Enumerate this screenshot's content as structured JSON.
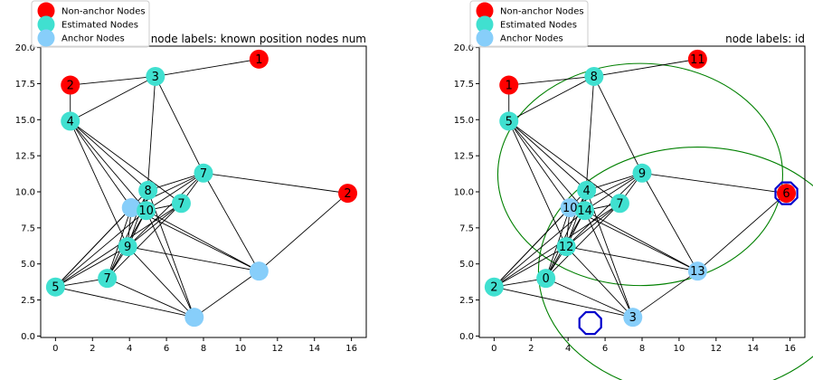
{
  "chart_data": [
    {
      "type": "scatter",
      "title": "node labels: known position nodes num",
      "xlim": [
        -0.8,
        16.8
      ],
      "ylim": [
        -0.1,
        20.1
      ],
      "xticks": [
        0,
        2,
        4,
        6,
        8,
        10,
        12,
        14,
        16
      ],
      "yticks": [
        0.0,
        2.5,
        5.0,
        7.5,
        10.0,
        12.5,
        15.0,
        17.5,
        20.0
      ],
      "grid": false,
      "legend": {
        "placement": "top-left",
        "entries": [
          {
            "label": "Non-anchor Nodes",
            "color": "#ff0000"
          },
          {
            "label": "Estimated Nodes",
            "color": "#40e0d0"
          },
          {
            "label": "Anchor Nodes",
            "color": "#87cefa"
          }
        ]
      },
      "nodes": [
        {
          "id": 0,
          "x": 2.8,
          "y": 4.0,
          "kind": "estimated",
          "label": "7"
        },
        {
          "id": 1,
          "x": 0.8,
          "y": 17.4,
          "kind": "non-anchor",
          "label": "2"
        },
        {
          "id": 2,
          "x": 0.0,
          "y": 3.4,
          "kind": "estimated",
          "label": "5"
        },
        {
          "id": 3,
          "x": 7.5,
          "y": 1.3,
          "kind": "anchor",
          "label": ""
        },
        {
          "id": 4,
          "x": 5.0,
          "y": 10.1,
          "kind": "estimated",
          "label": "8"
        },
        {
          "id": 5,
          "x": 0.8,
          "y": 14.9,
          "kind": "estimated",
          "label": "4"
        },
        {
          "id": 6,
          "x": 15.8,
          "y": 9.9,
          "kind": "non-anchor",
          "label": "2"
        },
        {
          "id": 7,
          "x": 6.8,
          "y": 9.2,
          "kind": "estimated",
          "label": "7"
        },
        {
          "id": 8,
          "x": 5.4,
          "y": 18.0,
          "kind": "estimated",
          "label": "3"
        },
        {
          "id": 9,
          "x": 8.0,
          "y": 11.3,
          "kind": "estimated",
          "label": "7"
        },
        {
          "id": 10,
          "x": 4.1,
          "y": 8.9,
          "kind": "anchor",
          "label": ""
        },
        {
          "id": 11,
          "x": 11.0,
          "y": 19.2,
          "kind": "non-anchor",
          "label": "1"
        },
        {
          "id": 12,
          "x": 3.9,
          "y": 6.2,
          "kind": "estimated",
          "label": "9"
        },
        {
          "id": 13,
          "x": 11.0,
          "y": 4.5,
          "kind": "anchor",
          "label": ""
        },
        {
          "id": 14,
          "x": 4.9,
          "y": 8.7,
          "kind": "estimated",
          "label": "10"
        }
      ],
      "edges": [
        [
          1,
          8
        ],
        [
          8,
          11
        ],
        [
          8,
          5
        ],
        [
          8,
          14
        ],
        [
          8,
          9
        ],
        [
          1,
          5
        ],
        [
          5,
          4
        ],
        [
          5,
          14
        ],
        [
          5,
          10
        ],
        [
          5,
          12
        ],
        [
          5,
          7
        ],
        [
          4,
          9
        ],
        [
          4,
          3
        ],
        [
          4,
          12
        ],
        [
          4,
          0
        ],
        [
          4,
          2
        ],
        [
          9,
          7
        ],
        [
          9,
          14
        ],
        [
          9,
          10
        ],
        [
          9,
          12
        ],
        [
          9,
          13
        ],
        [
          9,
          6
        ],
        [
          6,
          13
        ],
        [
          10,
          12
        ],
        [
          10,
          0
        ],
        [
          10,
          2
        ],
        [
          10,
          13
        ],
        [
          14,
          7
        ],
        [
          14,
          12
        ],
        [
          14,
          0
        ],
        [
          14,
          2
        ],
        [
          14,
          13
        ],
        [
          14,
          3
        ],
        [
          7,
          12
        ],
        [
          7,
          0
        ],
        [
          7,
          2
        ],
        [
          12,
          0
        ],
        [
          12,
          2
        ],
        [
          12,
          13
        ],
        [
          12,
          3
        ],
        [
          0,
          2
        ],
        [
          0,
          3
        ],
        [
          2,
          3
        ],
        [
          3,
          13
        ]
      ]
    },
    {
      "type": "scatter",
      "title": "node labels: id",
      "xlim": [
        -0.8,
        16.8
      ],
      "ylim": [
        -0.1,
        20.1
      ],
      "xticks": [
        0,
        2,
        4,
        6,
        8,
        10,
        12,
        14,
        16
      ],
      "yticks": [
        0.0,
        2.5,
        5.0,
        7.5,
        10.0,
        12.5,
        15.0,
        17.5,
        20.0
      ],
      "grid": false,
      "legend": {
        "placement": "top-left",
        "entries": [
          {
            "label": "Non-anchor Nodes",
            "color": "#ff0000"
          },
          {
            "label": "Estimated Nodes",
            "color": "#40e0d0"
          },
          {
            "label": "Anchor Nodes",
            "color": "#87cefa"
          }
        ]
      },
      "nodes": [
        {
          "id": 0,
          "x": 2.8,
          "y": 4.0,
          "kind": "estimated",
          "label": "0"
        },
        {
          "id": 1,
          "x": 0.8,
          "y": 17.4,
          "kind": "non-anchor",
          "label": "1"
        },
        {
          "id": 2,
          "x": 0.0,
          "y": 3.4,
          "kind": "estimated",
          "label": "2"
        },
        {
          "id": 3,
          "x": 7.5,
          "y": 1.3,
          "kind": "anchor",
          "label": "3"
        },
        {
          "id": 4,
          "x": 5.0,
          "y": 10.1,
          "kind": "estimated",
          "label": "4"
        },
        {
          "id": 5,
          "x": 0.8,
          "y": 14.9,
          "kind": "estimated",
          "label": "5"
        },
        {
          "id": 6,
          "x": 15.8,
          "y": 9.9,
          "kind": "non-anchor",
          "label": "6"
        },
        {
          "id": 7,
          "x": 6.8,
          "y": 9.2,
          "kind": "estimated",
          "label": "7"
        },
        {
          "id": 8,
          "x": 5.4,
          "y": 18.0,
          "kind": "estimated",
          "label": "8"
        },
        {
          "id": 9,
          "x": 8.0,
          "y": 11.3,
          "kind": "estimated",
          "label": "9"
        },
        {
          "id": 10,
          "x": 4.1,
          "y": 8.9,
          "kind": "anchor",
          "label": "10"
        },
        {
          "id": 11,
          "x": 11.0,
          "y": 19.2,
          "kind": "non-anchor",
          "label": "11"
        },
        {
          "id": 12,
          "x": 3.9,
          "y": 6.2,
          "kind": "estimated",
          "label": "12"
        },
        {
          "id": 13,
          "x": 11.0,
          "y": 4.5,
          "kind": "anchor",
          "label": "13"
        },
        {
          "id": 14,
          "x": 4.9,
          "y": 8.7,
          "kind": "estimated",
          "label": "14"
        }
      ],
      "edges": [
        [
          1,
          8
        ],
        [
          8,
          11
        ],
        [
          8,
          5
        ],
        [
          8,
          14
        ],
        [
          8,
          9
        ],
        [
          1,
          5
        ],
        [
          5,
          4
        ],
        [
          5,
          14
        ],
        [
          5,
          10
        ],
        [
          5,
          12
        ],
        [
          5,
          7
        ],
        [
          4,
          9
        ],
        [
          4,
          3
        ],
        [
          4,
          12
        ],
        [
          4,
          0
        ],
        [
          4,
          2
        ],
        [
          9,
          7
        ],
        [
          9,
          14
        ],
        [
          9,
          10
        ],
        [
          9,
          12
        ],
        [
          9,
          13
        ],
        [
          9,
          6
        ],
        [
          6,
          13
        ],
        [
          10,
          12
        ],
        [
          10,
          0
        ],
        [
          10,
          2
        ],
        [
          10,
          13
        ],
        [
          14,
          7
        ],
        [
          14,
          12
        ],
        [
          14,
          0
        ],
        [
          14,
          2
        ],
        [
          14,
          13
        ],
        [
          14,
          3
        ],
        [
          7,
          12
        ],
        [
          7,
          0
        ],
        [
          7,
          2
        ],
        [
          12,
          0
        ],
        [
          12,
          2
        ],
        [
          12,
          13
        ],
        [
          12,
          3
        ],
        [
          0,
          2
        ],
        [
          0,
          3
        ],
        [
          2,
          3
        ],
        [
          3,
          13
        ]
      ],
      "circles": [
        {
          "cx": 7.9,
          "cy": 11.2,
          "r": 7.7,
          "color": "#008000"
        },
        {
          "cx": 11.0,
          "cy": 4.5,
          "r": 8.6,
          "color": "#008000"
        }
      ],
      "markers": [
        {
          "x": 15.8,
          "y": 9.9,
          "shape": "octagon",
          "color": "#0000cc"
        },
        {
          "x": 5.2,
          "y": 0.9,
          "shape": "octagon",
          "color": "#0000cc"
        }
      ]
    }
  ],
  "colors": {
    "non_anchor": "#ff0000",
    "estimated": "#40e0d0",
    "anchor": "#87cefa",
    "circle": "#008000",
    "marker": "#0000cc"
  }
}
